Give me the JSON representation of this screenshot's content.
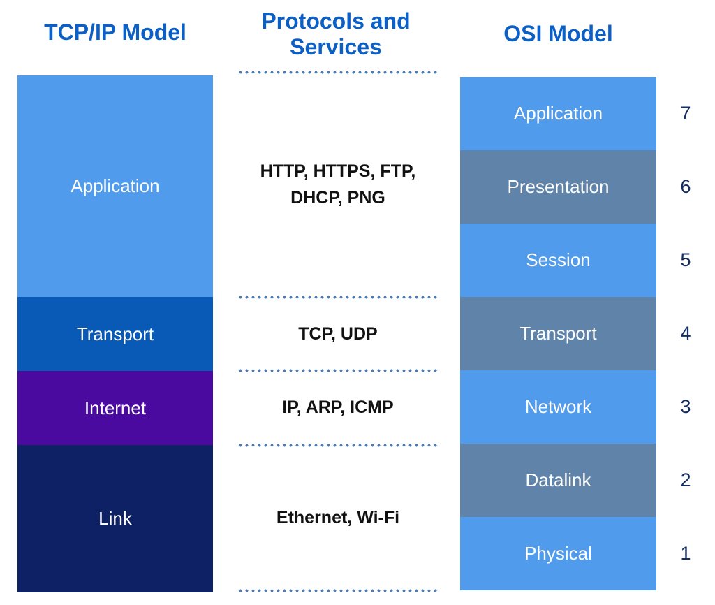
{
  "titles": {
    "tcpip": "TCP/IP Model",
    "middle": "Protocols and Services",
    "osi": "OSI Model"
  },
  "colors": {
    "title_blue": "#0B5FC5",
    "light_blue": "#519BEC",
    "slate_blue": "#5F83A9",
    "transport_blue": "#0959B6",
    "internet_purple": "#4A099F",
    "link_navy": "#0D2164",
    "number_navy": "#142E63",
    "dotted_line_blue": "#4A7CB5",
    "protocol_text": "#111111",
    "layer_label_text": "#FFFFFF",
    "background": "#FFFFFF"
  },
  "tcpip_model": {
    "layers": [
      {
        "label": "Application",
        "color": "#519BEC"
      },
      {
        "label": "Transport",
        "color": "#0959B6"
      },
      {
        "label": "Internet",
        "color": "#4A099F"
      },
      {
        "label": "Link",
        "color": "#0D2164"
      }
    ]
  },
  "protocols": {
    "groups": [
      {
        "lines": [
          "HTTP, HTTPS, FTP,",
          "DHCP, PNG"
        ]
      },
      {
        "lines": [
          "TCP, UDP"
        ]
      },
      {
        "lines": [
          "IP, ARP, ICMP"
        ]
      },
      {
        "lines": [
          "Ethernet, Wi-Fi"
        ]
      }
    ]
  },
  "osi_model": {
    "layers": [
      {
        "label": "Application",
        "number": "7",
        "color": "#519BEC"
      },
      {
        "label": "Presentation",
        "number": "6",
        "color": "#5F83A9"
      },
      {
        "label": "Session",
        "number": "5",
        "color": "#519BEC"
      },
      {
        "label": "Transport",
        "number": "4",
        "color": "#5F83A9"
      },
      {
        "label": "Network",
        "number": "3",
        "color": "#519BEC"
      },
      {
        "label": "Datalink",
        "number": "2",
        "color": "#5F83A9"
      },
      {
        "label": "Physical",
        "number": "1",
        "color": "#519BEC"
      }
    ]
  }
}
